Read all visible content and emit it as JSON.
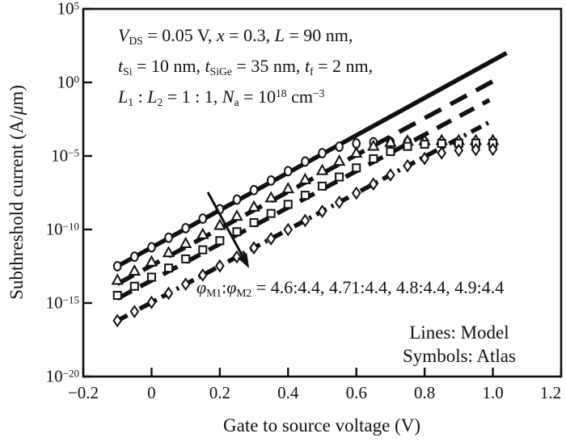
{
  "figure": {
    "background": "#ffffff",
    "ink": "#111111"
  },
  "axes": {
    "x": {
      "label": "Gate to source voltage (V)",
      "ticks": [
        {
          "v": -0.2,
          "label": "−0.2"
        },
        {
          "v": 0.0,
          "label": "0"
        },
        {
          "v": 0.2,
          "label": "0.2"
        },
        {
          "v": 0.4,
          "label": "0.4"
        },
        {
          "v": 0.6,
          "label": "0.6"
        },
        {
          "v": 0.8,
          "label": "0.8"
        },
        {
          "v": 1.0,
          "label": "1.0"
        },
        {
          "v": 1.2,
          "label": "1.2"
        }
      ]
    },
    "y": {
      "label_segments": [
        [
          "",
          "Subthreshold current (A/"
        ],
        [
          "i",
          "μ"
        ],
        [
          "",
          "m)"
        ]
      ],
      "ticks": [
        {
          "log10": 5,
          "segments": [
            [
              "",
              "10"
            ],
            [
              "sup",
              "5"
            ]
          ]
        },
        {
          "log10": 0,
          "segments": [
            [
              "",
              "10"
            ],
            [
              "sup",
              "0"
            ]
          ]
        },
        {
          "log10": -5,
          "segments": [
            [
              "",
              "10"
            ],
            [
              "sup",
              "−5"
            ]
          ]
        },
        {
          "log10": -10,
          "segments": [
            [
              "",
              "10"
            ],
            [
              "sup",
              "−10"
            ]
          ]
        },
        {
          "log10": -15,
          "segments": [
            [
              "",
              "10"
            ],
            [
              "sup",
              "−15"
            ]
          ]
        },
        {
          "log10": -20,
          "segments": [
            [
              "",
              "10"
            ],
            [
              "sup",
              "−20"
            ]
          ]
        }
      ]
    }
  },
  "annotations": {
    "device_params": {
      "lines": [
        [
          [
            "i",
            "V"
          ],
          [
            "sub",
            "DS"
          ],
          [
            "",
            " = 0.05 V, "
          ],
          [
            "i",
            "x"
          ],
          [
            "",
            " = 0.3, "
          ],
          [
            "i",
            "L"
          ],
          [
            "",
            " = 90 nm,"
          ]
        ],
        [
          [
            "i",
            "t"
          ],
          [
            "sub",
            "Si"
          ],
          [
            "",
            " = 10 nm, "
          ],
          [
            "i",
            "t"
          ],
          [
            "sub",
            "SiGe"
          ],
          [
            "",
            " = 35 nm, "
          ],
          [
            "i",
            "t"
          ],
          [
            "sub",
            "f"
          ],
          [
            "",
            " = 2 nm,"
          ]
        ],
        [
          [
            "i",
            "L"
          ],
          [
            "sub",
            "1"
          ],
          [
            "",
            " : "
          ],
          [
            "i",
            "L"
          ],
          [
            "sub",
            "2"
          ],
          [
            "",
            " = 1 : 1, "
          ],
          [
            "i",
            "N"
          ],
          [
            "sub",
            "a"
          ],
          [
            "",
            " = 10"
          ],
          [
            "sup",
            "18"
          ],
          [
            "",
            " cm"
          ],
          [
            "sup",
            "−3"
          ]
        ]
      ]
    },
    "phi_ratios": {
      "segments": [
        [
          "i",
          "φ"
        ],
        [
          "sub",
          "M1"
        ],
        [
          "",
          ":"
        ],
        [
          "i",
          "φ"
        ],
        [
          "sub",
          "M2"
        ],
        [
          "",
          " = 4.6:4.4, 4.71:4.4, 4.8:4.4, 4.9:4.4"
        ]
      ]
    },
    "legend": {
      "lines": [
        "Lines: Model",
        "Symbols: Atlas"
      ]
    }
  },
  "chart_data": {
    "type": "line",
    "x_label": "Gate to source voltage (V)",
    "y_label": "Subthreshold current (A/μm)",
    "y_scale": "log10",
    "x_lim": [
      -0.2,
      1.2
    ],
    "y_lim_log10": [
      -20,
      5
    ],
    "x_ticks": [
      -0.2,
      0,
      0.2,
      0.4,
      0.6,
      0.8,
      1.0,
      1.2
    ],
    "y_tick_log10": [
      5,
      0,
      -5,
      -10,
      -15,
      -20
    ],
    "legend_note": [
      "Lines: Model",
      "Symbols: Atlas"
    ],
    "symbol_v_volts": [
      -0.1,
      -0.05,
      0.0,
      0.05,
      0.1,
      0.15,
      0.2,
      0.25,
      0.3,
      0.35,
      0.4,
      0.45,
      0.5,
      0.55,
      0.6,
      0.65,
      0.7,
      0.75,
      0.8,
      0.85,
      0.9,
      0.95,
      1.0
    ],
    "series": [
      {
        "name": "φM1:φM2 = 4.6:4.4",
        "phi_m1": 4.6,
        "phi_m2": 4.4,
        "marker": "circle",
        "line_style": "solid",
        "dash": [],
        "model_line": {
          "v": [
            -0.1,
            1.04
          ],
          "log10_i": [
            -12.5,
            2.0
          ]
        },
        "atlas_log10_i": [
          -12.5,
          -11.85,
          -11.21,
          -10.56,
          -9.91,
          -9.26,
          -8.62,
          -7.97,
          -7.32,
          -6.67,
          -6.03,
          -5.38,
          -4.81,
          -4.37,
          -4.15,
          -4.07,
          -4.06,
          -4.05,
          -4.05,
          -4.05,
          -4.05,
          -4.05,
          -4.05
        ]
      },
      {
        "name": "φM1:φM2 = 4.71:4.4",
        "phi_m1": 4.71,
        "phi_m2": 4.4,
        "marker": "triangle",
        "line_style": "dashed",
        "dash": [
          23,
          13
        ],
        "model_line": {
          "v": [
            -0.1,
            1.01
          ],
          "log10_i": [
            -13.7,
            0.2
          ]
        },
        "atlas_log10_i": [
          -13.7,
          -13.08,
          -12.46,
          -11.83,
          -11.21,
          -10.59,
          -9.97,
          -9.35,
          -8.72,
          -8.1,
          -7.48,
          -6.86,
          -6.24,
          -5.61,
          -5.06,
          -4.59,
          -4.33,
          -4.24,
          -4.21,
          -4.2,
          -4.2,
          -4.2,
          -4.2
        ]
      },
      {
        "name": "φM1:φM2 = 4.8:4.4",
        "phi_m1": 4.8,
        "phi_m2": 4.4,
        "marker": "square",
        "line_style": "dashed",
        "dash": [
          20,
          12
        ],
        "model_line": {
          "v": [
            -0.1,
            0.99
          ],
          "log10_i": [
            -14.7,
            -1.2
          ]
        },
        "atlas_log10_i": [
          -14.7,
          -14.08,
          -13.46,
          -12.84,
          -12.22,
          -11.6,
          -10.98,
          -10.37,
          -9.75,
          -9.13,
          -8.51,
          -7.89,
          -7.27,
          -6.65,
          -6.03,
          -5.41,
          -4.92,
          -4.57,
          -4.42,
          -4.37,
          -4.36,
          -4.35,
          -4.35
        ]
      },
      {
        "name": "φM1:φM2 = 4.9:4.4",
        "phi_m1": 4.9,
        "phi_m2": 4.4,
        "marker": "diamond",
        "line_style": "dash-dot",
        "dash": [
          14,
          7,
          3,
          7
        ],
        "model_line": {
          "v": [
            -0.1,
            0.99
          ],
          "log10_i": [
            -16.2,
            -2.7
          ]
        },
        "atlas_log10_i": [
          -16.2,
          -15.58,
          -14.96,
          -14.34,
          -13.72,
          -13.1,
          -12.48,
          -11.87,
          -11.25,
          -10.63,
          -10.01,
          -9.39,
          -8.77,
          -8.15,
          -7.53,
          -6.91,
          -6.29,
          -5.67,
          -5.17,
          -4.8,
          -4.62,
          -4.57,
          -4.55
        ]
      }
    ],
    "arrow": {
      "v1": 0.165,
      "log10_i1": -7.47,
      "v2": 0.286,
      "log10_i2": -12.64
    }
  }
}
